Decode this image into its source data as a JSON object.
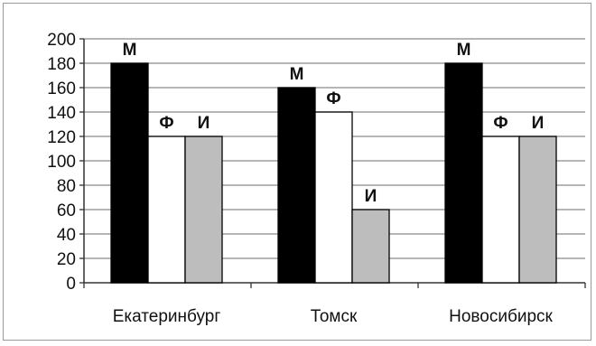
{
  "chart_data": {
    "type": "bar",
    "categories": [
      "Екатеринбург",
      "Томск",
      "Новосибирск"
    ],
    "series": [
      {
        "name": "М",
        "values": [
          180,
          160,
          180
        ],
        "color": "#000000"
      },
      {
        "name": "Ф",
        "values": [
          120,
          140,
          120
        ],
        "color": "#ffffff"
      },
      {
        "name": "И",
        "values": [
          120,
          60,
          120
        ],
        "color": "#bdbdbd"
      }
    ],
    "ylim": [
      0,
      200
    ],
    "yticks": [
      0,
      20,
      40,
      60,
      80,
      100,
      120,
      140,
      160,
      180,
      200
    ],
    "grid": true,
    "legend": "none",
    "title": "",
    "xlabel": "",
    "ylabel": ""
  }
}
